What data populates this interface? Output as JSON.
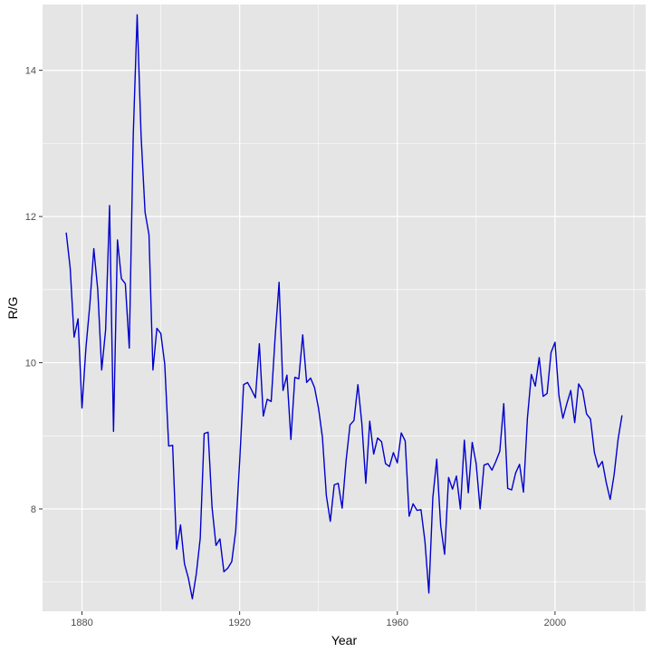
{
  "chart_data": {
    "type": "line",
    "xlabel": "Year",
    "ylabel": "R/G",
    "xlim": [
      1870,
      2023
    ],
    "ylim": [
      6.6,
      14.9
    ],
    "x_ticks": [
      1880,
      1920,
      1960,
      2000
    ],
    "y_ticks": [
      8,
      10,
      12,
      14
    ],
    "grid": true,
    "colors": {
      "line": "#0000CD",
      "panel": "#E5E5E5",
      "grid": "#FFFFFF"
    },
    "series": [
      {
        "x": [
          1876,
          1877,
          1878,
          1879,
          1880,
          1881,
          1882,
          1883,
          1884,
          1885,
          1886,
          1887,
          1888,
          1889,
          1890,
          1891,
          1892,
          1893,
          1894,
          1895,
          1896,
          1897,
          1898,
          1899,
          1900,
          1901,
          1902,
          1903,
          1904,
          1905,
          1906,
          1907,
          1908,
          1909,
          1910,
          1911,
          1912,
          1913,
          1914,
          1915,
          1916,
          1917,
          1918,
          1919,
          1920,
          1921,
          1922,
          1923,
          1924,
          1925,
          1926,
          1927,
          1928,
          1929,
          1930,
          1931,
          1932,
          1933,
          1934,
          1935,
          1936,
          1937,
          1938,
          1939,
          1940,
          1941,
          1942,
          1943,
          1944,
          1945,
          1946,
          1947,
          1948,
          1949,
          1950,
          1951,
          1952,
          1953,
          1954,
          1955,
          1956,
          1957,
          1958,
          1959,
          1960,
          1961,
          1962,
          1963,
          1964,
          1965,
          1966,
          1967,
          1968,
          1969,
          1970,
          1971,
          1972,
          1973,
          1974,
          1975,
          1976,
          1977,
          1978,
          1979,
          1980,
          1981,
          1982,
          1983,
          1984,
          1985,
          1986,
          1987,
          1988,
          1989,
          1990,
          1991,
          1992,
          1993,
          1994,
          1995,
          1996,
          1997,
          1998,
          1999,
          2000,
          2001,
          2002,
          2003,
          2004,
          2005,
          2006,
          2007,
          2008,
          2009,
          2010,
          2011,
          2012,
          2013,
          2014,
          2015,
          2016,
          2017
        ],
        "values": [
          11.78,
          11.3,
          10.35,
          10.6,
          9.38,
          10.2,
          10.8,
          11.56,
          11,
          9.9,
          10.45,
          12.15,
          9.06,
          11.68,
          11.15,
          11.08,
          10.2,
          13.1,
          14.76,
          13.1,
          12.06,
          11.75,
          9.9,
          10.47,
          10.4,
          9.98,
          8.86,
          8.87,
          7.45,
          7.78,
          7.25,
          7.05,
          6.77,
          7.11,
          7.6,
          9.03,
          9.05,
          8.02,
          7.5,
          7.59,
          7.14,
          7.19,
          7.28,
          7.7,
          8.65,
          9.7,
          9.73,
          9.63,
          9.52,
          10.26,
          9.27,
          9.5,
          9.47,
          10.35,
          11.1,
          9.62,
          9.83,
          8.95,
          9.8,
          9.78,
          10.38,
          9.73,
          9.79,
          9.66,
          9.38,
          8.98,
          8.18,
          7.83,
          8.33,
          8.35,
          8.01,
          8.66,
          9.15,
          9.21,
          9.7,
          9.17,
          8.35,
          9.2,
          8.75,
          8.97,
          8.92,
          8.62,
          8.58,
          8.77,
          8.63,
          9.04,
          8.93,
          7.9,
          8.07,
          7.98,
          7.99,
          7.56,
          6.85,
          8.15,
          8.68,
          7.77,
          7.38,
          8.43,
          8.27,
          8.45,
          8,
          8.94,
          8.22,
          8.91,
          8.62,
          8,
          8.6,
          8.62,
          8.53,
          8.65,
          8.79,
          9.44,
          8.28,
          8.26,
          8.49,
          8.61,
          8.23,
          9.24,
          9.84,
          9.68,
          10.07,
          9.54,
          9.58,
          10.14,
          10.28,
          9.55,
          9.24,
          9.44,
          9.62,
          9.18,
          9.71,
          9.62,
          9.3,
          9.23,
          8.77,
          8.57,
          8.65,
          8.36,
          8.13,
          8.47,
          8.95,
          9.28
        ]
      }
    ]
  }
}
